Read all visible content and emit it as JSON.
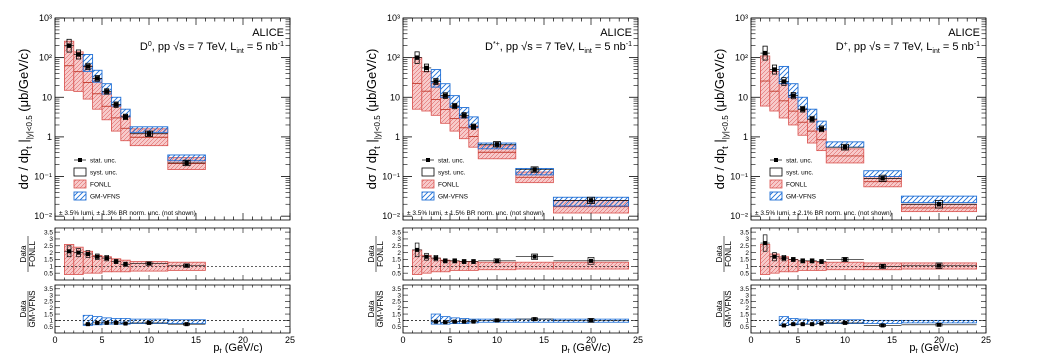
{
  "chart_data": [
    {
      "type": "scatter",
      "experiment": "ALICE",
      "title_prefix": "D",
      "title_sup": "0",
      "title_rest": ", pp √s = 7 TeV, L",
      "title_sub": "int",
      "title_end": " = 5 nb",
      "title_end_sup": "-1",
      "ylabel": "dσ / dp_t |_{|y|<0.5} (μb/GeV/c)",
      "ylabel_main": "dσ / dp",
      "ylabel_sub1": "t",
      "ylabel_mid": " |",
      "ylabel_sub2": "|y|<0.5",
      "ylabel_unit": "(μb/GeV/c)",
      "xlabel_main": "p",
      "xlabel_sub": "t",
      "xlabel_unit": " (GeV/c)",
      "xlim": [
        0,
        25
      ],
      "ylim": [
        0.008,
        1000
      ],
      "yscale": "log",
      "xticks": [
        "0",
        "5",
        "10",
        "15",
        "20",
        "25"
      ],
      "yticks": [
        "10⁻²",
        "10⁻¹",
        "1",
        "10",
        "10²",
        "10³"
      ],
      "legend": [
        "stat. unc.",
        "syst. unc.",
        "FONLL",
        "GM-VFNS"
      ],
      "note": "± 3.5% lumi, ± 1.3% BR norm. unc. (not shown)",
      "bins": [
        [
          1,
          2
        ],
        [
          2,
          3
        ],
        [
          3,
          4
        ],
        [
          4,
          5
        ],
        [
          5,
          6
        ],
        [
          6,
          7
        ],
        [
          7,
          8
        ],
        [
          8,
          12
        ],
        [
          12,
          16
        ]
      ],
      "x": [
        1.5,
        2.5,
        3.5,
        4.5,
        5.5,
        6.5,
        7.5,
        10,
        14
      ],
      "y": [
        200,
        120,
        60,
        30,
        14,
        6.5,
        3.2,
        1.2,
        0.22
      ],
      "syst": [
        0.45,
        0.3,
        0.2,
        0.18,
        0.17,
        0.17,
        0.17,
        0.17,
        0.17
      ],
      "fonll_lo": [
        15,
        14,
        9,
        5,
        2.7,
        1.4,
        0.8,
        0.6,
        0.15
      ],
      "fonll_hi": [
        260,
        140,
        62,
        30,
        13,
        6.5,
        3.4,
        1.6,
        0.3
      ],
      "gm_lo": [
        null,
        null,
        45,
        24,
        12,
        6,
        3.2,
        1.3,
        0.25
      ],
      "gm_hi": [
        null,
        null,
        120,
        48,
        22,
        10,
        5,
        1.8,
        0.35
      ],
      "ratio1": {
        "label_top": "Data",
        "label_bottom": "FONLL",
        "yticks": [
          "0.5",
          "1",
          "1.5",
          "2",
          "2.5",
          "3",
          "3.5"
        ],
        "y": [
          2.1,
          2.0,
          1.9,
          1.7,
          1.6,
          1.35,
          1.15,
          1.2,
          1.05
        ],
        "err": [
          0.4,
          0.3,
          0.25,
          0.2,
          0.2,
          0.15,
          0.15,
          0.12,
          0.12
        ],
        "band_lo": [
          0.4,
          0.4,
          0.5,
          0.5,
          0.6,
          0.6,
          0.6,
          0.65,
          0.7
        ],
        "band_hi": [
          2.6,
          2.4,
          2.1,
          1.8,
          1.7,
          1.55,
          1.45,
          1.35,
          1.3
        ]
      },
      "ratio2": {
        "label_top": "Data",
        "label_bottom": "GM-VFNS",
        "yticks": [
          "0.5",
          "1",
          "1.5",
          "2",
          "2.5",
          "3",
          "3.5"
        ],
        "y": [
          null,
          null,
          0.7,
          0.8,
          0.8,
          0.8,
          0.75,
          0.8,
          0.7
        ],
        "err": [
          null,
          null,
          0.08,
          0.08,
          0.08,
          0.08,
          0.08,
          0.08,
          0.08
        ],
        "band_lo": [
          null,
          null,
          0.6,
          0.65,
          0.7,
          0.7,
          0.7,
          0.75,
          0.75
        ],
        "band_hi": [
          null,
          null,
          1.4,
          1.3,
          1.2,
          1.15,
          1.15,
          1.1,
          1.05
        ]
      }
    },
    {
      "type": "scatter",
      "experiment": "ALICE",
      "title_prefix": "D",
      "title_sup": "*+",
      "title_rest": ", pp √s = 7 TeV, L",
      "title_sub": "int",
      "title_end": " = 5 nb",
      "title_end_sup": "-1",
      "ylabel_main": "dσ / dp",
      "ylabel_sub1": "t",
      "ylabel_mid": " |",
      "ylabel_sub2": "|y|<0.5",
      "ylabel_unit": "(μb/GeV/c)",
      "xlabel_main": "p",
      "xlabel_sub": "t",
      "xlabel_unit": " (GeV/c)",
      "xlim": [
        0,
        25
      ],
      "ylim": [
        0.008,
        1000
      ],
      "yscale": "log",
      "xticks": [
        "0",
        "5",
        "10",
        "15",
        "20",
        "25"
      ],
      "yticks": [
        "10⁻²",
        "10⁻¹",
        "1",
        "10",
        "10²",
        "10³"
      ],
      "legend": [
        "stat. unc.",
        "syst. unc.",
        "FONLL",
        "GM-VFNS"
      ],
      "note": "± 3.5% lumi, ± 1.5% BR norm. unc. (not shown)",
      "bins": [
        [
          1,
          2
        ],
        [
          2,
          3
        ],
        [
          3,
          4
        ],
        [
          4,
          5
        ],
        [
          5,
          6
        ],
        [
          6,
          7
        ],
        [
          7,
          8
        ],
        [
          8,
          12
        ],
        [
          12,
          16
        ],
        [
          16,
          24
        ]
      ],
      "x": [
        1.5,
        2.5,
        3.5,
        4.5,
        5.5,
        6.5,
        7.5,
        10,
        14,
        20
      ],
      "y": [
        100,
        55,
        25,
        11,
        6,
        3.5,
        1.8,
        0.65,
        0.15,
        0.025
      ],
      "syst": [
        0.4,
        0.25,
        0.2,
        0.18,
        0.17,
        0.17,
        0.17,
        0.17,
        0.17,
        0.2
      ],
      "fonll_lo": [
        5,
        4.5,
        3.5,
        2.2,
        1.4,
        0.9,
        0.55,
        0.28,
        0.07,
        0.012
      ],
      "fonll_hi": [
        100,
        45,
        22,
        11,
        6,
        3.2,
        1.9,
        0.6,
        0.13,
        0.025
      ],
      "gm_lo": [
        null,
        null,
        18,
        10,
        5.5,
        3,
        1.7,
        0.5,
        0.11,
        0.018
      ],
      "gm_hi": [
        null,
        null,
        50,
        22,
        11,
        5.5,
        3.2,
        0.7,
        0.16,
        0.03
      ],
      "ratio1": {
        "label_top": "Data",
        "label_bottom": "FONLL",
        "yticks": [
          "0.5",
          "1",
          "1.5",
          "2",
          "2.5",
          "3",
          "3.5"
        ],
        "y": [
          2.2,
          1.7,
          1.6,
          1.4,
          1.4,
          1.35,
          1.35,
          1.4,
          1.7,
          1.4
        ],
        "err": [
          0.5,
          0.25,
          0.2,
          0.15,
          0.15,
          0.15,
          0.15,
          0.15,
          0.2,
          0.25
        ],
        "band_lo": [
          0.4,
          0.5,
          0.6,
          0.6,
          0.7,
          0.7,
          0.7,
          0.75,
          0.8,
          0.8
        ],
        "band_hi": [
          2.2,
          1.8,
          1.6,
          1.45,
          1.4,
          1.35,
          1.35,
          1.3,
          1.3,
          1.3
        ]
      },
      "ratio2": {
        "label_top": "Data",
        "label_bottom": "GM-VFNS",
        "yticks": [
          "0.5",
          "1",
          "1.5",
          "2",
          "2.5",
          "3",
          "3.5"
        ],
        "y": [
          null,
          null,
          0.9,
          0.85,
          0.9,
          0.9,
          0.9,
          1.0,
          1.1,
          1.0
        ],
        "err": [
          null,
          null,
          0.1,
          0.08,
          0.08,
          0.08,
          0.08,
          0.1,
          0.1,
          0.15
        ],
        "band_lo": [
          null,
          null,
          0.7,
          0.7,
          0.75,
          0.75,
          0.8,
          0.85,
          0.85,
          0.85
        ],
        "band_hi": [
          null,
          null,
          1.5,
          1.3,
          1.2,
          1.15,
          1.1,
          1.1,
          1.1,
          1.1
        ]
      }
    },
    {
      "type": "scatter",
      "experiment": "ALICE",
      "title_prefix": "D",
      "title_sup": "+",
      "title_rest": ", pp √s = 7 TeV, L",
      "title_sub": "int",
      "title_end": " = 5 nb",
      "title_end_sup": "-1",
      "ylabel_main": "dσ / dp",
      "ylabel_sub1": "t",
      "ylabel_mid": " |",
      "ylabel_sub2": "|y|<0.5",
      "ylabel_unit": "(μb/GeV/c)",
      "xlabel_main": "p",
      "xlabel_sub": "t",
      "xlabel_unit": " (GeV/c)",
      "xlim": [
        0,
        25
      ],
      "ylim": [
        0.008,
        1000
      ],
      "yscale": "log",
      "xticks": [
        "0",
        "5",
        "10",
        "15",
        "20",
        "25"
      ],
      "yticks": [
        "10⁻²",
        "10⁻¹",
        "1",
        "10",
        "10²",
        "10³"
      ],
      "legend": [
        "stat. unc.",
        "syst. unc.",
        "FONLL",
        "GM-VFNS"
      ],
      "note": "± 3.5% lumi, ± 2.1% BR norm. unc. (not shown)",
      "bins": [
        [
          1,
          2
        ],
        [
          2,
          3
        ],
        [
          3,
          4
        ],
        [
          4,
          5
        ],
        [
          5,
          6
        ],
        [
          6,
          7
        ],
        [
          7,
          8
        ],
        [
          8,
          12
        ],
        [
          12,
          16
        ],
        [
          16,
          24
        ]
      ],
      "x": [
        1.5,
        2.5,
        3.5,
        4.5,
        5.5,
        6.5,
        7.5,
        10,
        14,
        20
      ],
      "y": [
        130,
        50,
        25,
        11,
        5,
        2.8,
        1.6,
        0.55,
        0.09,
        0.02
      ],
      "syst": [
        0.5,
        0.3,
        0.25,
        0.2,
        0.18,
        0.18,
        0.18,
        0.18,
        0.2,
        0.25
      ],
      "fonll_lo": [
        6,
        4.5,
        3,
        2,
        1.1,
        0.7,
        0.45,
        0.22,
        0.055,
        0.013
      ],
      "fonll_hi": [
        110,
        45,
        22,
        10,
        5,
        2.8,
        1.6,
        0.5,
        0.1,
        0.02
      ],
      "gm_lo": [
        null,
        null,
        22,
        10,
        5,
        2.8,
        1.5,
        0.55,
        0.1,
        0.022
      ],
      "gm_hi": [
        null,
        null,
        60,
        22,
        10,
        5,
        2.5,
        0.75,
        0.14,
        0.032
      ],
      "ratio1": {
        "label_top": "Data",
        "label_bottom": "FONLL",
        "yticks": [
          "0.5",
          "1",
          "1.5",
          "2",
          "2.5",
          "3",
          "3.5"
        ],
        "y": [
          2.7,
          1.7,
          1.6,
          1.5,
          1.4,
          1.4,
          1.35,
          1.5,
          1.0,
          1.05
        ],
        "err": [
          0.6,
          0.3,
          0.2,
          0.15,
          0.15,
          0.15,
          0.15,
          0.15,
          0.15,
          0.2
        ],
        "band_lo": [
          0.4,
          0.5,
          0.6,
          0.6,
          0.7,
          0.7,
          0.7,
          0.75,
          0.75,
          0.8
        ],
        "band_hi": [
          2.6,
          1.9,
          1.7,
          1.5,
          1.4,
          1.35,
          1.3,
          1.3,
          1.25,
          1.25
        ]
      },
      "ratio2": {
        "label_top": "Data",
        "label_bottom": "GM-VFNS",
        "yticks": [
          "0.5",
          "1",
          "1.5",
          "2",
          "2.5",
          "3",
          "3.5"
        ],
        "y": [
          null,
          null,
          0.6,
          0.7,
          0.7,
          0.7,
          0.75,
          0.8,
          0.6,
          0.65
        ],
        "err": [
          null,
          null,
          0.08,
          0.08,
          0.08,
          0.08,
          0.08,
          0.08,
          0.08,
          0.1
        ],
        "band_lo": [
          null,
          null,
          0.6,
          0.65,
          0.7,
          0.7,
          0.75,
          0.75,
          0.75,
          0.8
        ],
        "band_hi": [
          null,
          null,
          1.3,
          1.15,
          1.1,
          1.05,
          1.05,
          1.05,
          1.0,
          1.0
        ]
      }
    }
  ]
}
